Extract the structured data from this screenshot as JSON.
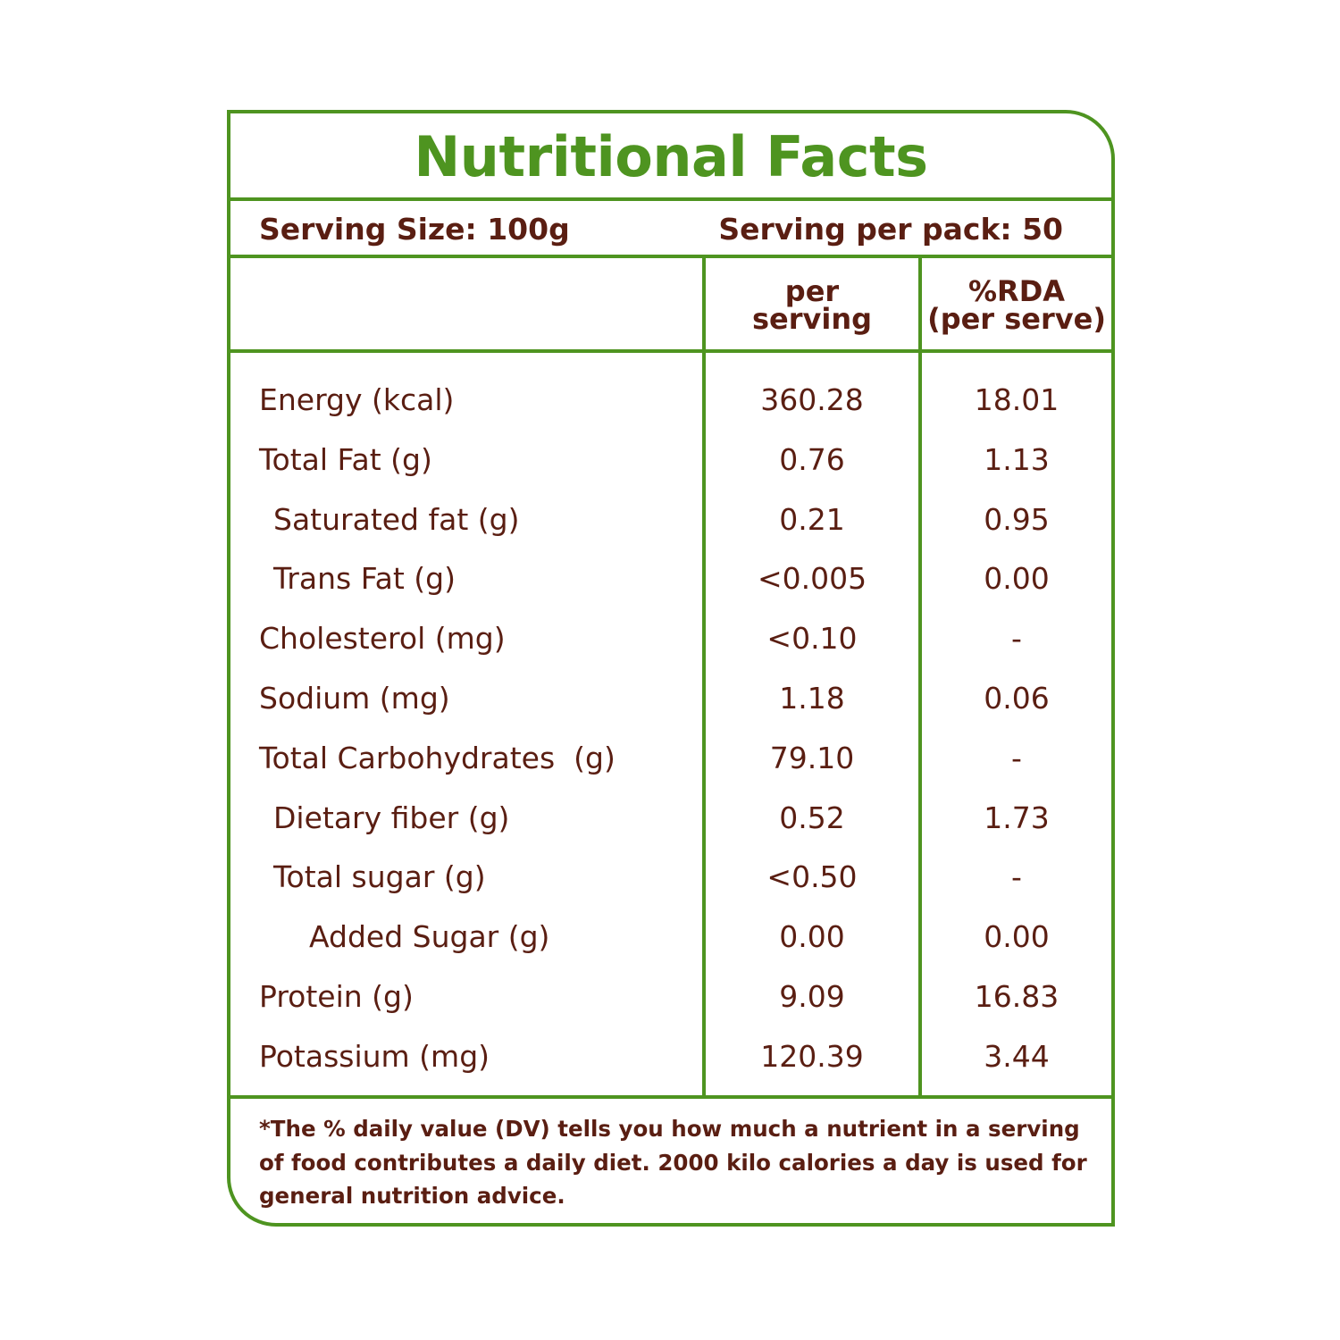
{
  "title": "Nutritional Facts",
  "serving": {
    "size": "Serving Size: 100g",
    "per_pack": "Serving per pack: 50"
  },
  "columns": {
    "per_serving": [
      "per",
      "serving"
    ],
    "rda": [
      "%RDA",
      "(per serve)"
    ]
  },
  "nutrients": [
    {
      "label": "Energy (kcal)",
      "value": "360.28",
      "rda": "18.01",
      "indent": 0
    },
    {
      "label": "Total Fat (g)",
      "value": "0.76",
      "rda": "1.13",
      "indent": 0
    },
    {
      "label": "Saturated fat (g)",
      "value": "0.21",
      "rda": "0.95",
      "indent": 1
    },
    {
      "label": "Trans Fat (g)",
      "value": "<0.005",
      "rda": "0.00",
      "indent": 1
    },
    {
      "label": "Cholesterol (mg)",
      "value": "<0.10",
      "rda": "-",
      "indent": 0
    },
    {
      "label": "Sodium (mg)",
      "value": "1.18",
      "rda": "0.06",
      "indent": 0
    },
    {
      "label": "Total Carbohydrates  (g)",
      "value": "79.10",
      "rda": "-",
      "indent": 0
    },
    {
      "label": "Dietary fiber (g)",
      "value": "0.52",
      "rda": "1.73",
      "indent": 1
    },
    {
      "label": "Total sugar (g)",
      "value": "<0.50",
      "rda": "-",
      "indent": 1
    },
    {
      "label": "Added Sugar (g)",
      "value": "0.00",
      "rda": "0.00",
      "indent": 2
    },
    {
      "label": "Protein (g)",
      "value": "9.09",
      "rda": "16.83",
      "indent": 0
    },
    {
      "label": "Potassium (mg)",
      "value": "120.39",
      "rda": "3.44",
      "indent": 0
    }
  ],
  "footnote": [
    "*The % daily value (DV) tells you how much a nutrient in a serving",
    "of food contributes a daily diet. 2000 kilo calories a day is used for",
    "general nutrition advice."
  ],
  "colors": {
    "border": "#4e9420",
    "title": "#4e9420",
    "text": "#5a1e12"
  }
}
